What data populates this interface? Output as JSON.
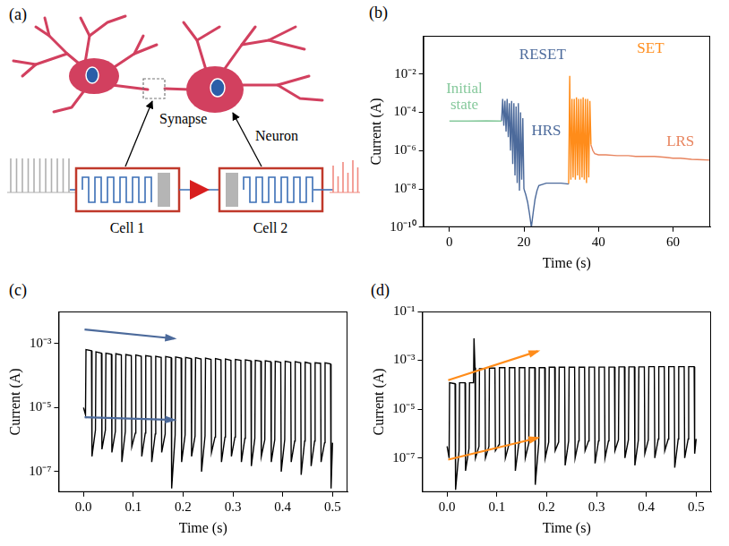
{
  "diagram": {
    "letter": "(a)",
    "labels": {
      "synapse": "Synapse",
      "neuron": "Neuron",
      "cell_1": "Cell 1",
      "cell_2": "Cell 2"
    }
  },
  "chart_data": [
    {
      "type": "line",
      "title": "(b)",
      "x_label": "Time (s)",
      "y_label": "Current (A)",
      "xlim": [
        -7,
        70
      ],
      "xticks": [
        0,
        20,
        40,
        60
      ],
      "ylim": [
        1e-10,
        1
      ],
      "yticks": [
        {
          "value": 1e-10,
          "label": "10⁻¹⁰"
        },
        {
          "value": 1e-08,
          "label": "10⁻⁸"
        },
        {
          "value": 1e-06,
          "label": "10⁻⁶"
        },
        {
          "value": 0.0001,
          "label": "10⁻⁴"
        },
        {
          "value": 0.01,
          "label": "10⁻²"
        }
      ],
      "log": "y",
      "grid": false,
      "series": [
        {
          "color": "#86c99c",
          "x": [
            0,
            5,
            10,
            14
          ],
          "values": [
            3.5e-05,
            3.5e-05,
            3.6e-05,
            3.5e-05
          ]
        },
        {
          "color": "#4c6a9b",
          "x": [
            14,
            14.3,
            14.6,
            14.9,
            15.2,
            15.5,
            15.8,
            16.1,
            16.4,
            16.7,
            17,
            17.3,
            17.6,
            17.9,
            18.2,
            18.5,
            18.8,
            19.1,
            19.4,
            19.7,
            20
          ],
          "values": [
            3.5e-05,
            0.0005,
            2e-05,
            0.0004,
            1e-05,
            0.0005,
            5e-06,
            0.0003,
            1e-06,
            0.0004,
            2e-07,
            0.0003,
            5e-08,
            0.0002,
            2e-08,
            0.0003,
            8e-09,
            0.0001,
            3e-08,
            5e-05,
            1e-08
          ]
        },
        {
          "color": "#4c6a9b",
          "x": [
            20,
            20.5,
            21,
            21.5,
            22,
            22.5,
            23,
            23.5,
            24,
            26,
            28,
            30,
            32
          ],
          "values": [
            1e-08,
            5e-09,
            2e-09,
            5e-10,
            1e-10,
            6e-10,
            3e-09,
            8e-09,
            1.5e-08,
            2e-08,
            2e-08,
            2e-08,
            1.8e-08
          ]
        },
        {
          "color": "#ff8c1a",
          "x": [
            32,
            32.3,
            32.6,
            32.9,
            33.2,
            33.5,
            33.8,
            34.1,
            34.4,
            34.7,
            35,
            35.3,
            35.6,
            35.9,
            36.2,
            36.5,
            36.8,
            37.1,
            37.4,
            37.7,
            38
          ],
          "values": [
            1.8e-08,
            0.008,
            3e-08,
            0.0005,
            4e-08,
            0.0005,
            3e-08,
            0.0006,
            5e-08,
            0.0005,
            3e-08,
            0.0005,
            4e-08,
            0.0006,
            3e-08,
            0.0005,
            2e-08,
            0.0005,
            4e-08,
            0.0004,
            2e-06
          ]
        },
        {
          "color": "#e8845e",
          "x": [
            38,
            38.5,
            39,
            40,
            42,
            45,
            48,
            50,
            52,
            55,
            58,
            60,
            62,
            65,
            68,
            70
          ],
          "values": [
            2e-06,
            1e-06,
            7e-07,
            6e-07,
            6e-07,
            5.5e-07,
            5.5e-07,
            5e-07,
            5e-07,
            5e-07,
            4.5e-07,
            4e-07,
            4e-07,
            3.5e-07,
            3.3e-07,
            3.2e-07
          ]
        }
      ],
      "annotations": [
        {
          "text": "Initial state",
          "x": 4,
          "y": 0.0006,
          "color": "#86c99c"
        },
        {
          "text": "RESET",
          "x": 25,
          "y": 0.1,
          "color": "#4c6a9b"
        },
        {
          "text": "HRS",
          "x": 26,
          "y": 1e-05,
          "color": "#4c6a9b"
        },
        {
          "text": "SET",
          "x": 54,
          "y": 0.2,
          "color": "#ff8c1a"
        },
        {
          "text": "LRS",
          "x": 62,
          "y": 3e-06,
          "color": "#e8845e"
        }
      ]
    },
    {
      "type": "line",
      "title": "(c)",
      "x_label": "Time (s)",
      "y_label": "Current (A)",
      "xlim": [
        -0.05,
        0.53
      ],
      "xticks": [
        {
          "value": 0,
          "label": "0.0"
        },
        0.1,
        0.2,
        0.3,
        0.4,
        0.5
      ],
      "ylim": [
        2.3e-08,
        0.01
      ],
      "yticks": [
        {
          "value": 1e-07,
          "label": "10⁻⁷"
        },
        {
          "value": 1e-05,
          "label": "10⁻⁵"
        },
        {
          "value": 0.001,
          "label": "10⁻³"
        }
      ],
      "log": "y",
      "grid": false,
      "series": [
        {
          "color": "#000000",
          "x": [
            0,
            0.004,
            0.005,
            0.016,
            0.017,
            0.024,
            0.025,
            0.036,
            0.037,
            0.044,
            0.045,
            0.056,
            0.057,
            0.064,
            0.065,
            0.076,
            0.077,
            0.084,
            0.085,
            0.096,
            0.097,
            0.104,
            0.105,
            0.116,
            0.117,
            0.124,
            0.125,
            0.136,
            0.137,
            0.144,
            0.145,
            0.156,
            0.157,
            0.164,
            0.165,
            0.176,
            0.177,
            0.184,
            0.185,
            0.196,
            0.197,
            0.204,
            0.205,
            0.216,
            0.217,
            0.224,
            0.225,
            0.236,
            0.237,
            0.244,
            0.245,
            0.256,
            0.257,
            0.264,
            0.265,
            0.276,
            0.277,
            0.284,
            0.285,
            0.296,
            0.297,
            0.304,
            0.305,
            0.316,
            0.317,
            0.324,
            0.325,
            0.336,
            0.337,
            0.344,
            0.345,
            0.356,
            0.357,
            0.364,
            0.365,
            0.376,
            0.377,
            0.384,
            0.385,
            0.396,
            0.397,
            0.404,
            0.405,
            0.416,
            0.417,
            0.424,
            0.425,
            0.436,
            0.437,
            0.444,
            0.445,
            0.456,
            0.457,
            0.464,
            0.465,
            0.476,
            0.477,
            0.484,
            0.485,
            0.496,
            0.497,
            0.5
          ],
          "values": [
            1e-05,
            6e-06,
            0.00065,
            0.0006,
            3e-07,
            2e-06,
            0.00055,
            0.0005,
            5e-07,
            2e-06,
            0.0005,
            0.00046,
            4e-07,
            1.8e-06,
            0.00048,
            0.00044,
            2e-07,
            1.8e-06,
            0.00045,
            0.00042,
            6e-07,
            1.6e-06,
            0.00044,
            0.0004,
            3e-07,
            1.6e-06,
            0.00042,
            0.00039,
            2e-07,
            1.5e-06,
            0.0004,
            0.00037,
            4e-07,
            1.5e-06,
            0.00039,
            0.00036,
            3e-08,
            1.4e-06,
            0.00038,
            0.00035,
            2e-07,
            1.4e-06,
            0.00037,
            0.00034,
            3e-07,
            1.3e-06,
            0.00036,
            0.00033,
            1e-07,
            1.3e-06,
            0.00035,
            0.00032,
            4e-07,
            1.2e-06,
            0.00034,
            0.00031,
            2e-07,
            1.2e-06,
            0.00033,
            0.0003,
            3e-07,
            1.2e-06,
            0.00032,
            0.0003,
            2e-07,
            1.1e-06,
            0.00031,
            0.00029,
            1.5e-07,
            1.1e-06,
            0.0003,
            0.00028,
            3e-07,
            1e-06,
            0.00029,
            0.00027,
            2e-07,
            1e-06,
            0.00028,
            0.00026,
            1e-07,
            1e-06,
            0.00028,
            0.00026,
            2e-07,
            9e-07,
            0.00027,
            0.00025,
            8e-08,
            9e-07,
            0.00026,
            0.00024,
            1.5e-07,
            9e-07,
            0.00025,
            0.00024,
            2e-07,
            8e-07,
            0.00025,
            0.00023,
            3e-08,
            8e-07
          ]
        }
      ]
    },
    {
      "type": "line",
      "title": "(d)",
      "x_label": "Time (s)",
      "y_label": "Current (A)",
      "xlim": [
        -0.05,
        0.53
      ],
      "xticks": [
        {
          "value": 0,
          "label": "0.0"
        },
        0.1,
        0.2,
        0.3,
        0.4,
        0.5
      ],
      "ylim": [
        4e-09,
        0.1
      ],
      "yticks": [
        {
          "value": 1e-07,
          "label": "10⁻⁷"
        },
        {
          "value": 1e-05,
          "label": "10⁻⁵"
        },
        {
          "value": 0.001,
          "label": "10⁻³"
        },
        {
          "value": 0.1,
          "label": "10⁻¹"
        }
      ],
      "log": "y",
      "grid": false,
      "series": [
        {
          "color": "#000000",
          "x": [
            0,
            0.004,
            0.005,
            0.016,
            0.017,
            0.024,
            0.025,
            0.036,
            0.037,
            0.044,
            0.045,
            0.053,
            0.054,
            0.056,
            0.057,
            0.064,
            0.065,
            0.076,
            0.077,
            0.084,
            0.085,
            0.096,
            0.097,
            0.104,
            0.105,
            0.116,
            0.117,
            0.124,
            0.125,
            0.136,
            0.137,
            0.144,
            0.145,
            0.156,
            0.157,
            0.164,
            0.165,
            0.176,
            0.177,
            0.184,
            0.185,
            0.196,
            0.197,
            0.204,
            0.205,
            0.216,
            0.217,
            0.224,
            0.225,
            0.236,
            0.237,
            0.244,
            0.245,
            0.256,
            0.257,
            0.264,
            0.265,
            0.276,
            0.277,
            0.284,
            0.285,
            0.296,
            0.297,
            0.304,
            0.305,
            0.316,
            0.317,
            0.324,
            0.325,
            0.336,
            0.337,
            0.344,
            0.345,
            0.356,
            0.357,
            0.364,
            0.365,
            0.376,
            0.377,
            0.384,
            0.385,
            0.396,
            0.397,
            0.404,
            0.405,
            0.416,
            0.417,
            0.424,
            0.425,
            0.436,
            0.437,
            0.444,
            0.445,
            0.456,
            0.457,
            0.464,
            0.465,
            0.476,
            0.477,
            0.484,
            0.485,
            0.496,
            0.497,
            0.5
          ],
          "values": [
            3e-07,
            1e-07,
            0.00012,
            0.00011,
            5e-09,
            2e-07,
            0.00012,
            0.00012,
            3e-08,
            2.5e-07,
            0.00012,
            0.00012,
            0.008,
            0.0005,
            1e-07,
            3e-07,
            0.00045,
            0.00045,
            1e-07,
            3e-07,
            0.00048,
            0.00048,
            2e-07,
            3.5e-07,
            0.0005,
            0.0005,
            1e-07,
            3.5e-07,
            0.0005,
            0.0005,
            3e-08,
            4e-07,
            0.0005,
            0.0005,
            1e-07,
            4e-07,
            0.0005,
            0.0005,
            8e-09,
            4e-07,
            0.0005,
            0.0005,
            1e-07,
            4.5e-07,
            0.00052,
            0.00052,
            2e-07,
            4.5e-07,
            0.00052,
            0.00052,
            5e-08,
            5e-07,
            0.00052,
            0.00052,
            1e-07,
            5e-07,
            0.00052,
            0.00052,
            2e-07,
            5e-07,
            0.00053,
            0.00053,
            6e-08,
            5e-07,
            0.00053,
            0.00053,
            1e-07,
            5e-07,
            0.00053,
            0.00053,
            2e-07,
            5.5e-07,
            0.00054,
            0.00054,
            1e-07,
            5.5e-07,
            0.00054,
            0.00054,
            5e-08,
            5.5e-07,
            0.00054,
            0.00054,
            1.5e-07,
            5.5e-07,
            0.00055,
            0.00055,
            1e-07,
            6e-07,
            0.00055,
            0.00055,
            2e-07,
            6e-07,
            0.00055,
            0.00055,
            4e-08,
            6e-07,
            0.00055,
            0.00055,
            1e-07,
            6e-07,
            0.00055,
            0.00055,
            1.5e-07,
            6e-07
          ]
        }
      ]
    }
  ]
}
